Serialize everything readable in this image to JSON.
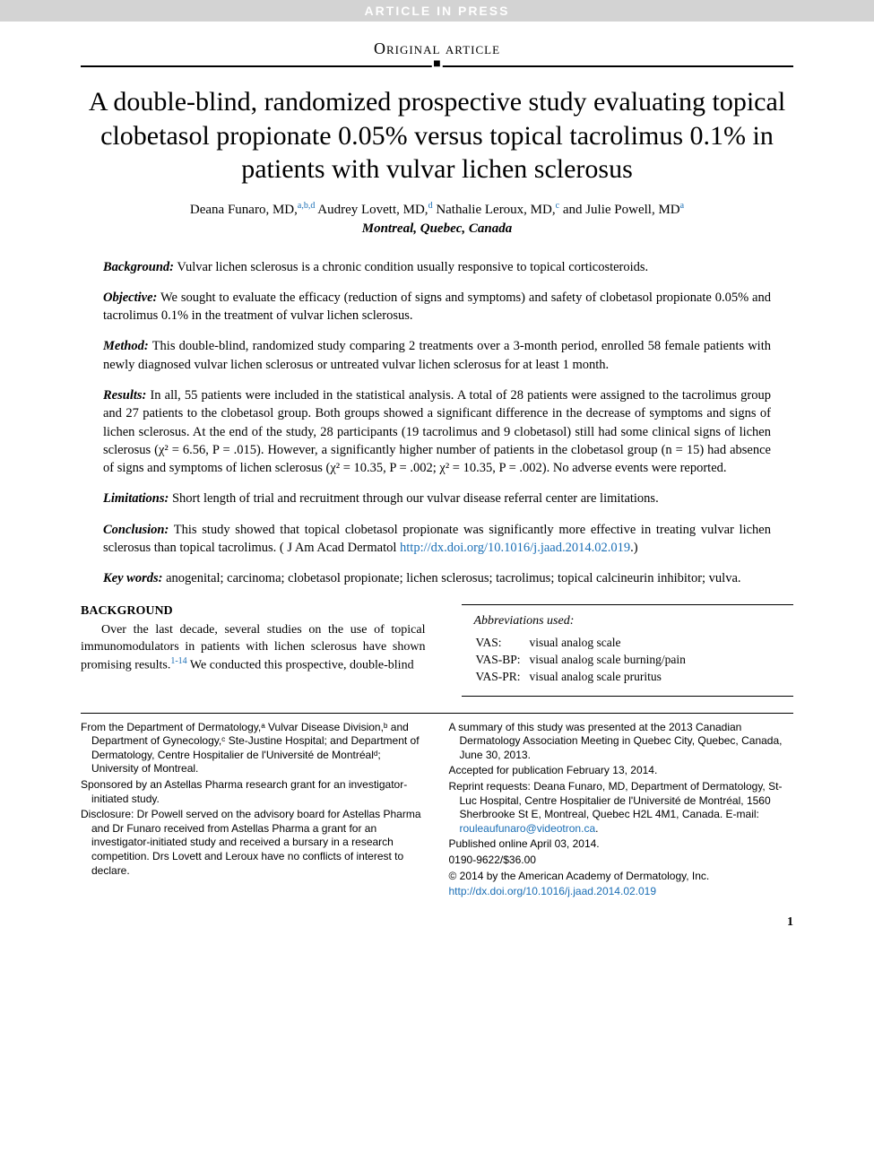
{
  "banner": "ARTICLE IN PRESS",
  "section_label": "Original article",
  "title": "A double-blind, randomized prospective study evaluating topical clobetasol propionate 0.05% versus topical tacrolimus 0.1% in patients with vulvar lichen sclerosus",
  "authors": [
    {
      "name": "Deana Funaro, MD,",
      "affil": "a,b,d"
    },
    {
      "name": "Audrey Lovett, MD,",
      "affil": "d"
    },
    {
      "name": "Nathalie Leroux, MD,",
      "affil": "c"
    },
    {
      "name": "and Julie Powell, MD",
      "affil": "a"
    }
  ],
  "location": "Montreal, Quebec, Canada",
  "abstract": {
    "background": {
      "label": "Background:",
      "text": "Vulvar lichen sclerosus is a chronic condition usually responsive to topical corticosteroids."
    },
    "objective": {
      "label": "Objective:",
      "text": "We sought to evaluate the efficacy (reduction of signs and symptoms) and safety of clobetasol propionate 0.05% and tacrolimus 0.1% in the treatment of vulvar lichen sclerosus."
    },
    "method": {
      "label": "Method:",
      "text": "This double-blind, randomized study comparing 2 treatments over a 3-month period, enrolled 58 female patients with newly diagnosed vulvar lichen sclerosus or untreated vulvar lichen sclerosus for at least 1 month."
    },
    "results": {
      "label": "Results:",
      "text": "In all, 55 patients were included in the statistical analysis. A total of 28 patients were assigned to the tacrolimus group and 27 patients to the clobetasol group. Both groups showed a significant difference in the decrease of symptoms and signs of lichen sclerosus. At the end of the study, 28 participants (19 tacrolimus and 9 clobetasol) still had some clinical signs of lichen sclerosus (χ² = 6.56, P = .015). However, a significantly higher number of patients in the clobetasol group (n = 15) had absence of signs and symptoms of lichen sclerosus (χ² = 10.35, P = .002; χ² = 10.35, P = .002). No adverse events were reported."
    },
    "limitations": {
      "label": "Limitations:",
      "text": "Short length of trial and recruitment through our vulvar disease referral center are limitations."
    },
    "conclusion": {
      "label": "Conclusion:",
      "text_pre": "This study showed that topical clobetasol propionate was significantly more effective in treating vulvar lichen sclerosus than topical tacrolimus. ( J Am Acad Dermatol ",
      "link": "http://dx.doi.org/10.1016/j.jaad.2014.02.019",
      "text_post": ".)"
    },
    "keywords": {
      "label": "Key words:",
      "text": "anogenital; carcinoma; clobetasol propionate; lichen sclerosus; tacrolimus; topical calcineurin inhibitor; vulva."
    }
  },
  "body": {
    "heading": "BACKGROUND",
    "para_pre": "Over the last decade, several studies on the use of topical immunomodulators in patients with lichen sclerosus have shown promising results.",
    "cite": "1-14",
    "para_post": " We conducted this prospective, double-blind"
  },
  "abbrev": {
    "title": "Abbreviations used:",
    "rows": [
      {
        "abbr": "VAS:",
        "def": "visual analog scale"
      },
      {
        "abbr": "VAS-BP:",
        "def": "visual analog scale burning/pain"
      },
      {
        "abbr": "VAS-PR:",
        "def": "visual analog scale pruritus"
      }
    ]
  },
  "footnotes": {
    "left": [
      "From the Department of Dermatology,ᵃ Vulvar Disease Division,ᵇ and Department of Gynecology,ᶜ Ste-Justine Hospital; and Department of Dermatology, Centre Hospitalier de l'Université de Montréalᵈ; University of Montreal.",
      "Sponsored by an Astellas Pharma research grant for an investigator-initiated study.",
      "Disclosure: Dr Powell served on the advisory board for Astellas Pharma and Dr Funaro received from Astellas Pharma a grant for an investigator-initiated study and received a bursary in a research competition. Drs Lovett and Leroux have no conflicts of interest to declare."
    ],
    "right": [
      {
        "text": "A summary of this study was presented at the 2013 Canadian Dermatology Association Meeting in Quebec City, Quebec, Canada, June 30, 2013."
      },
      {
        "text": "Accepted for publication February 13, 2014."
      },
      {
        "text": "Reprint requests: Deana Funaro, MD, Department of Dermatology, St-Luc Hospital, Centre Hospitalier de l'Université de Montréal, 1560 Sherbrooke St E, Montreal, Quebec H2L 4M1, Canada. E-mail: ",
        "link": "rouleaufunaro@videotron.ca",
        "post": "."
      },
      {
        "text": "Published online April 03, 2014."
      },
      {
        "text": "0190-9622/$36.00"
      },
      {
        "text": "© 2014 by the American Academy of Dermatology, Inc."
      },
      {
        "link_only": "http://dx.doi.org/10.1016/j.jaad.2014.02.019"
      }
    ]
  },
  "page_number": "1",
  "colors": {
    "link": "#1a6eb5",
    "banner_bg": "#d3d3d3",
    "banner_fg": "#ffffff"
  }
}
